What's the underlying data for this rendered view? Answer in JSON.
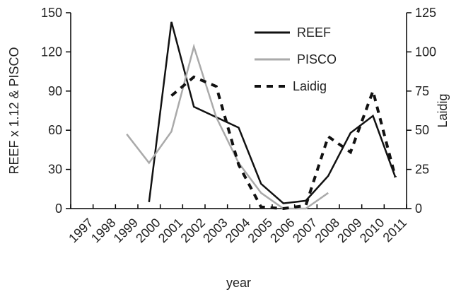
{
  "chart_data": {
    "type": "line",
    "title": "",
    "xlabel": "year",
    "ylabel_left": "REEF x 1.12 &  PISCO",
    "ylabel_right": "Laidig",
    "x": [
      "1997",
      "1998",
      "1999",
      "2000",
      "2001",
      "2002",
      "2003",
      "2004",
      "2005",
      "2006",
      "2007",
      "2008",
      "2009",
      "2010",
      "2011"
    ],
    "ylim_left": [
      0,
      150
    ],
    "ylim_right": [
      0,
      125
    ],
    "yticks_left": [
      "0",
      "30",
      "60",
      "90",
      "120",
      "150"
    ],
    "yticks_right": [
      "0",
      "25",
      "50",
      "75",
      "100",
      "125"
    ],
    "legend_position": "top-right",
    "series": [
      {
        "name": "REEF",
        "axis": "left",
        "color": "#111111",
        "style": "solid",
        "values": [
          null,
          null,
          null,
          5,
          143,
          78,
          70,
          62,
          19,
          4,
          6,
          25,
          58,
          71,
          24
        ]
      },
      {
        "name": "PISCO",
        "axis": "left",
        "color": "#aaaaaa",
        "style": "solid",
        "values": [
          null,
          null,
          57,
          35,
          59,
          124,
          70,
          35,
          12,
          0,
          0,
          12,
          null,
          null,
          null
        ]
      },
      {
        "name": "Laidig",
        "axis": "right",
        "color": "#111111",
        "style": "dashed",
        "values": [
          null,
          null,
          null,
          null,
          72,
          84,
          78,
          28,
          1,
          0,
          2,
          46,
          36,
          75,
          20
        ]
      }
    ]
  }
}
